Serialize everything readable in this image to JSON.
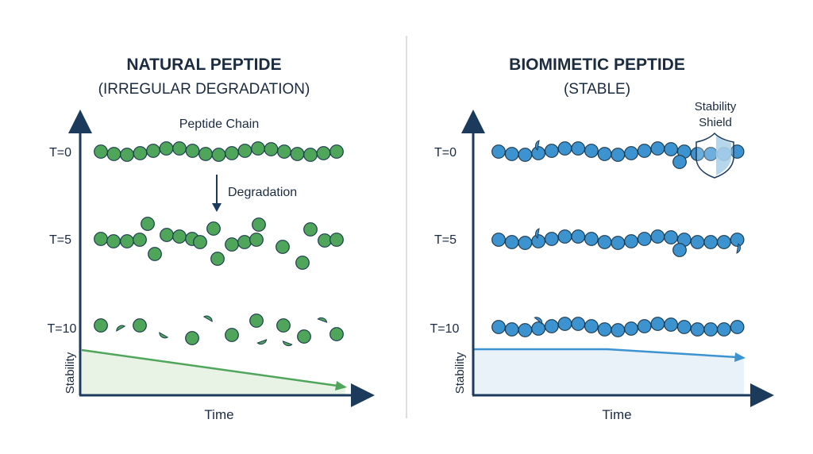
{
  "left": {
    "title": "NATURAL PEPTIDE",
    "subtitle": "(IRREGULAR DEGRADATION)",
    "chain_label": "Peptide Chain",
    "degradation_label": "Degradation",
    "time_labels": [
      "T=0",
      "T=5",
      "T=10"
    ],
    "y_axis_label": "Stability",
    "x_axis_label": "Time",
    "color": "#4fa65b",
    "fill_color": "#e8f3e6"
  },
  "right": {
    "title": "BIOMIMETIC PEPTIDE",
    "subtitle": "(STABLE)",
    "shield_label_1": "Stability",
    "shield_label_2": "Shield",
    "time_labels": [
      "T=0",
      "T=5",
      "T=10"
    ],
    "y_axis_label": "Stability",
    "x_axis_label": "Time",
    "color": "#3d93d0",
    "fill_color": "#e9f2f8"
  },
  "axis_color": "#1b3a5c"
}
